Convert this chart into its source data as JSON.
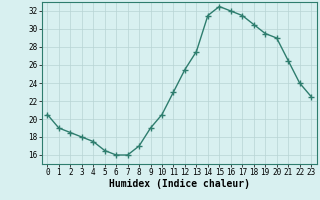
{
  "x": [
    0,
    1,
    2,
    3,
    4,
    5,
    6,
    7,
    8,
    9,
    10,
    11,
    12,
    13,
    14,
    15,
    16,
    17,
    18,
    19,
    20,
    21,
    22,
    23
  ],
  "y": [
    20.5,
    19.0,
    18.5,
    18.0,
    17.5,
    16.5,
    16.0,
    16.0,
    17.0,
    19.0,
    20.5,
    23.0,
    25.5,
    27.5,
    31.5,
    32.5,
    32.0,
    31.5,
    30.5,
    29.5,
    29.0,
    26.5,
    24.0,
    22.5
  ],
  "line_color": "#2e7d6e",
  "marker": "+",
  "marker_size": 4.0,
  "linewidth": 1.0,
  "bg_color": "#d8f0f0",
  "grid_color": "#b8d4d4",
  "xlabel": "Humidex (Indice chaleur)",
  "xlabel_fontsize": 7,
  "ylim": [
    15,
    33
  ],
  "xlim": [
    -0.5,
    23.5
  ],
  "yticks": [
    16,
    18,
    20,
    22,
    24,
    26,
    28,
    30,
    32
  ],
  "xticks": [
    0,
    1,
    2,
    3,
    4,
    5,
    6,
    7,
    8,
    9,
    10,
    11,
    12,
    13,
    14,
    15,
    16,
    17,
    18,
    19,
    20,
    21,
    22,
    23
  ],
  "tick_fontsize": 5.5,
  "xlabel_fontsize_bold": true
}
